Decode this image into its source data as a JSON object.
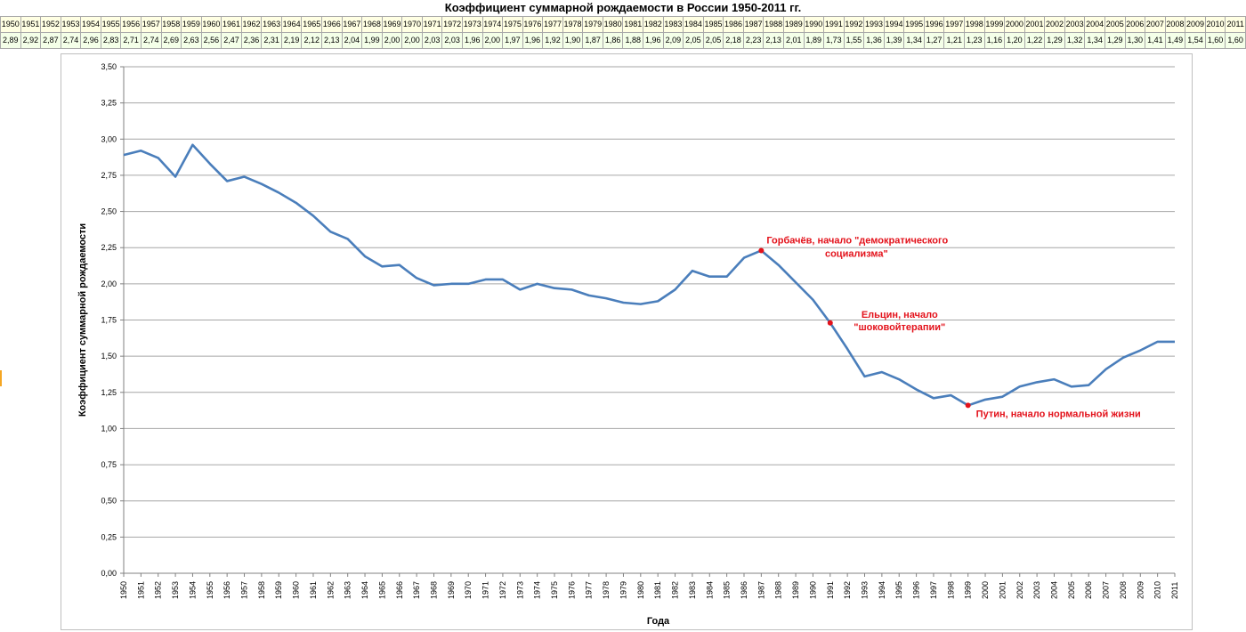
{
  "chart_data": {
    "type": "line",
    "title": "Коэффициент суммарной рождаемости в России 1950-2011 гг.",
    "xlabel": "Года",
    "ylabel": "Коэффициент суммарной рождаемости",
    "ylim": [
      0,
      3.5
    ],
    "ytick_step": 0.25,
    "ytick_labels": [
      "0,00",
      "0,25",
      "0,50",
      "0,75",
      "1,00",
      "1,25",
      "1,50",
      "1,75",
      "2,00",
      "2,25",
      "2,50",
      "2,75",
      "3,00",
      "3,25",
      "3,50"
    ],
    "grid": true,
    "legend": "none",
    "line_color": "#4a7ebb",
    "annotation_color": "#e3121b",
    "x": [
      1950,
      1951,
      1952,
      1953,
      1954,
      1955,
      1956,
      1957,
      1958,
      1959,
      1960,
      1961,
      1962,
      1963,
      1964,
      1965,
      1966,
      1967,
      1968,
      1969,
      1970,
      1971,
      1972,
      1973,
      1974,
      1975,
      1976,
      1977,
      1978,
      1979,
      1980,
      1981,
      1982,
      1983,
      1984,
      1985,
      1986,
      1987,
      1988,
      1989,
      1990,
      1991,
      1992,
      1993,
      1994,
      1995,
      1996,
      1997,
      1998,
      1999,
      2000,
      2001,
      2002,
      2003,
      2004,
      2005,
      2006,
      2007,
      2008,
      2009,
      2010,
      2011
    ],
    "series": [
      {
        "values": [
          2.89,
          2.92,
          2.87,
          2.74,
          2.96,
          2.83,
          2.71,
          2.74,
          2.69,
          2.63,
          2.56,
          2.47,
          2.36,
          2.31,
          2.19,
          2.12,
          2.13,
          2.04,
          1.99,
          2.0,
          2.0,
          2.03,
          2.03,
          1.96,
          2.0,
          1.97,
          1.96,
          1.92,
          1.9,
          1.87,
          1.86,
          1.88,
          1.96,
          2.09,
          2.05,
          2.05,
          2.18,
          2.23,
          2.13,
          2.01,
          1.89,
          1.73,
          1.55,
          1.36,
          1.39,
          1.34,
          1.27,
          1.21,
          1.23,
          1.16,
          1.2,
          1.22,
          1.29,
          1.32,
          1.34,
          1.29,
          1.3,
          1.41,
          1.49,
          1.54,
          1.6,
          1.6
        ]
      }
    ],
    "annotations": [
      {
        "x": 1987,
        "y": 2.23,
        "lines": [
          "Горбачёв, начало \"демократического",
          "социализма\""
        ]
      },
      {
        "x": 1991,
        "y": 1.73,
        "lines": [
          "Ельцин, начало",
          "\"шоковойтерапии\""
        ]
      },
      {
        "x": 1999,
        "y": 1.16,
        "lines": [
          "Путин, начало нормальной жизни"
        ]
      }
    ]
  },
  "table": {
    "years": [
      "1950",
      "1951",
      "1952",
      "1953",
      "1954",
      "1955",
      "1956",
      "1957",
      "1958",
      "1959",
      "1960",
      "1961",
      "1962",
      "1963",
      "1964",
      "1965",
      "1966",
      "1967",
      "1968",
      "1969",
      "1970",
      "1971",
      "1972",
      "1973",
      "1974",
      "1975",
      "1976",
      "1977",
      "1978",
      "1979",
      "1980",
      "1981",
      "1982",
      "1983",
      "1984",
      "1985",
      "1986",
      "1987",
      "1988",
      "1989",
      "1990",
      "1991",
      "1992",
      "1993",
      "1994",
      "1995",
      "1996",
      "1997",
      "1998",
      "1999",
      "2000",
      "2001",
      "2002",
      "2003",
      "2004",
      "2005",
      "2006",
      "2007",
      "2008",
      "2009",
      "2010",
      "2011"
    ],
    "values": [
      "2,89",
      "2,92",
      "2,87",
      "2,74",
      "2,96",
      "2,83",
      "2,71",
      "2,74",
      "2,69",
      "2,63",
      "2,56",
      "2,47",
      "2,36",
      "2,31",
      "2,19",
      "2,12",
      "2,13",
      "2,04",
      "1,99",
      "2,00",
      "2,00",
      "2,03",
      "2,03",
      "1,96",
      "2,00",
      "1,97",
      "1,96",
      "1,92",
      "1,90",
      "1,87",
      "1,86",
      "1,88",
      "1,96",
      "2,09",
      "2,05",
      "2,05",
      "2,18",
      "2,23",
      "2,13",
      "2,01",
      "1,89",
      "1,73",
      "1,55",
      "1,36",
      "1,39",
      "1,34",
      "1,27",
      "1,21",
      "1,23",
      "1,16",
      "1,20",
      "1,22",
      "1,29",
      "1,32",
      "1,34",
      "1,29",
      "1,30",
      "1,41",
      "1,49",
      "1,54",
      "1,60",
      "1,60"
    ]
  }
}
